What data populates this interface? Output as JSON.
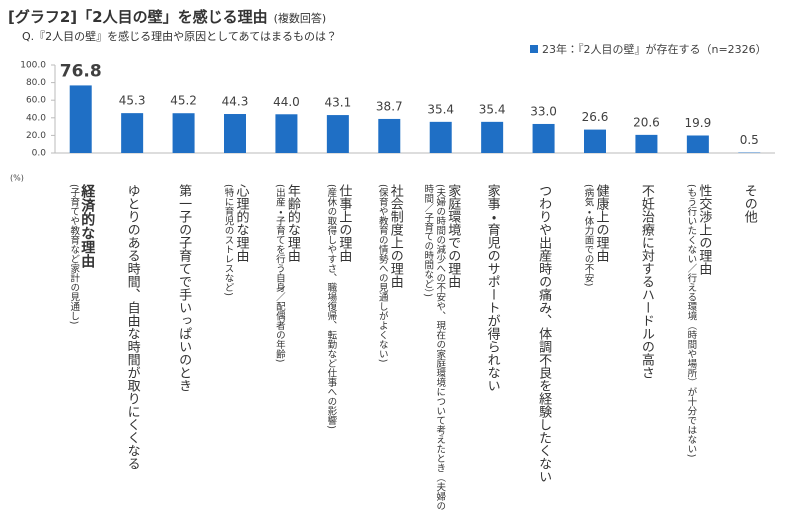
{
  "chart_data": {
    "type": "bar",
    "title": "[グラフ2]「2人目の壁」を感じる理由",
    "title_note": "(複数回答)",
    "subtitle": "Q.『2人目の壁』を感じる理由や原因としてあてはまるものは？",
    "y_unit": "(%)",
    "categories": [
      "経済的な理由",
      "ゆとりのある時間、自由な時間が取りにくくなる",
      "第一子の子育てで手いっぱいのとき",
      "心理的な理由",
      "年齢的な理由",
      "仕事上の理由",
      "社会制度上の理由",
      "家庭環境での理由",
      "家事・育児のサポートが得られない",
      "つわりや出産時の痛み、体調不良を経験したくない",
      "健康上の理由",
      "不妊治療に対するハードルの高さ",
      "性交渉上の理由",
      "その他"
    ],
    "category_notes": [
      "(子育てや教育など家計の見通し)",
      null,
      null,
      "(特に育児のストレスなど)",
      "(出産・子育てを行う自身／配偶者の年齢)",
      "(産休の取得しやすさ、職場復帰、転勤など仕事への影響)",
      "(保育や教育の情勢への見通しがよくない)",
      "(夫婦の時間の減少への不安や、現在の家庭環境について考えたとき（夫婦の時間／子育ての時間など）)",
      null,
      null,
      "(病気・体力面での不安)",
      null,
      "(もう行いたくない／行える環境（時間や場所）が十分ではない)",
      null
    ],
    "series": [
      {
        "name": "23年：『2人目の壁』が存在する（n=2326）",
        "color": "#1f6fc5",
        "values": [
          76.8,
          45.3,
          45.2,
          44.3,
          44.0,
          43.1,
          38.7,
          35.4,
          35.4,
          33.0,
          26.6,
          20.6,
          19.9,
          0.5
        ],
        "value_labels": [
          "76.8",
          "45.3",
          "45.2",
          "44.3",
          "44.0",
          "43.1",
          "38.7",
          "35.4",
          "35.4",
          "33.0",
          "26.6",
          "20.6",
          "19.9",
          "0.5"
        ]
      }
    ],
    "ylim": [
      0,
      100
    ],
    "yticks": [
      {
        "value": 0,
        "label": "0.0"
      },
      {
        "value": 20,
        "label": "20.0"
      },
      {
        "value": 40,
        "label": "40.0"
      },
      {
        "value": 60,
        "label": "60.0"
      },
      {
        "value": 80,
        "label": "80.0"
      },
      {
        "value": 100,
        "label": "100.0"
      }
    ],
    "grid": false,
    "legend": "top-right"
  }
}
